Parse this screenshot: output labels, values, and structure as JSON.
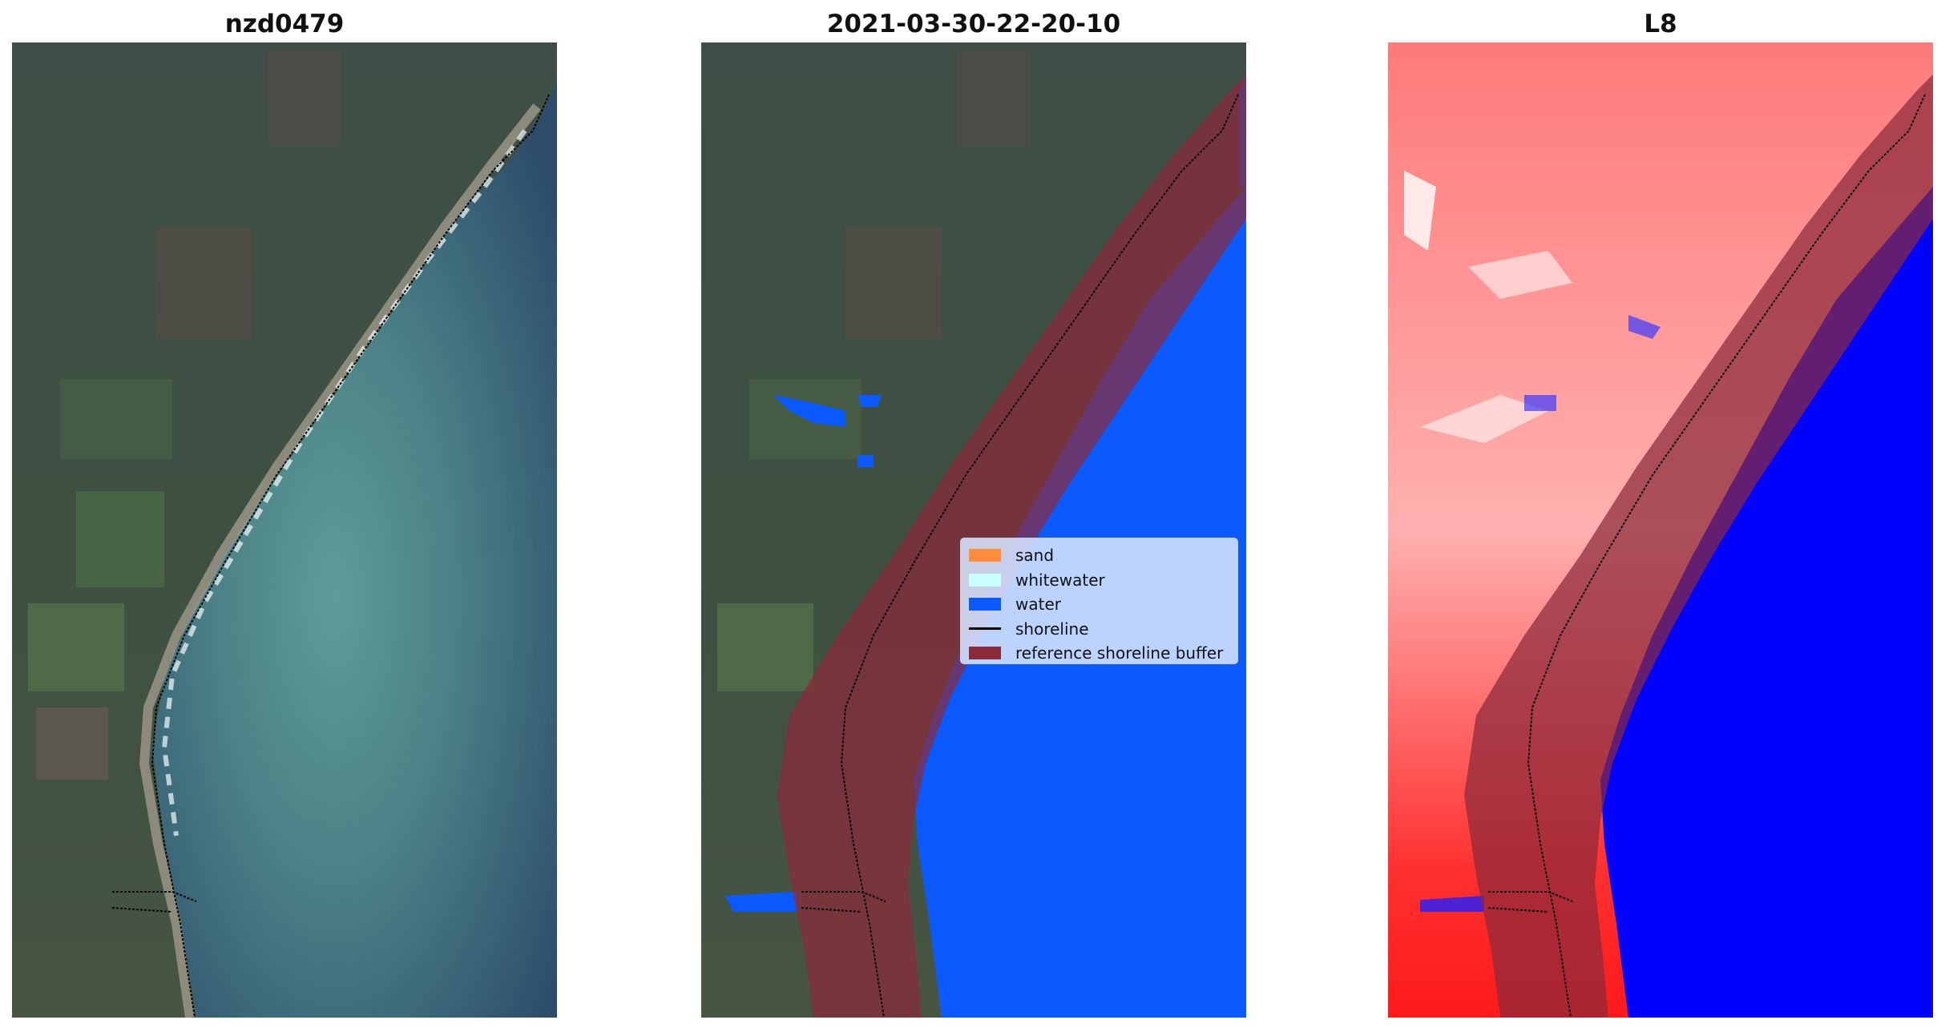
{
  "panels": [
    {
      "title": "nzd0479",
      "type": "rgb-satellite-image"
    },
    {
      "title": "2021-03-30-22-20-10",
      "type": "classified-image-with-overlay"
    },
    {
      "title": "L8",
      "type": "water-index-image"
    }
  ],
  "legend": {
    "items": [
      {
        "label": "sand",
        "color": "#ff8c3c",
        "kind": "patch"
      },
      {
        "label": "whitewater",
        "color": "#c8ffff",
        "kind": "patch"
      },
      {
        "label": "water",
        "color": "#0a5aff",
        "kind": "patch"
      },
      {
        "label": "shoreline",
        "color": "#000000",
        "kind": "line"
      },
      {
        "label": "reference shoreline buffer",
        "color": "#8b2a3a",
        "kind": "patch"
      }
    ]
  },
  "colors": {
    "land_dark": "#3b4a45",
    "water_sea": "#2f4f6e",
    "classified_water": "#0a5aff",
    "buffer": "#8b2a3a",
    "index_high": "#ff1a1a",
    "index_low": "#0000ff"
  }
}
